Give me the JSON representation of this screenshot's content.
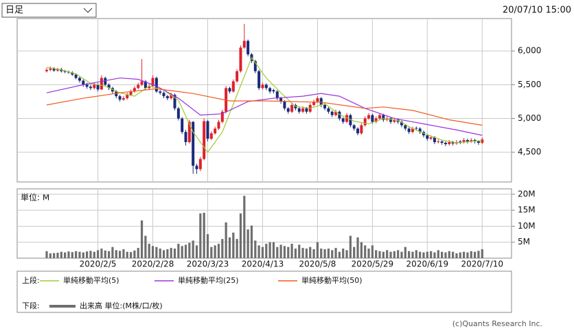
{
  "header": {
    "period": "日足",
    "timestamp": "20/07/10 15:00"
  },
  "chart_data": [
    {
      "type": "candlestick",
      "up_color": "#e0202a",
      "down_color": "#1a2a7a",
      "categories": [
        null,
        null,
        null,
        null,
        null,
        null,
        null,
        null,
        null,
        null,
        null,
        null,
        null,
        null,
        "2020/2/5",
        null,
        null,
        null,
        null,
        null,
        null,
        null,
        null,
        null,
        null,
        null,
        null,
        null,
        null,
        "2020/2/28",
        null,
        null,
        null,
        null,
        null,
        null,
        null,
        null,
        null,
        null,
        null,
        null,
        null,
        null,
        "2020/3/23",
        null,
        null,
        null,
        null,
        null,
        null,
        null,
        null,
        null,
        null,
        null,
        null,
        null,
        null,
        "2020/4/13",
        null,
        null,
        null,
        null,
        null,
        null,
        null,
        null,
        null,
        null,
        null,
        null,
        null,
        null,
        "2020/5/8",
        null,
        null,
        null,
        null,
        null,
        null,
        null,
        null,
        null,
        null,
        null,
        null,
        null,
        null,
        "2020/5/29",
        null,
        null,
        null,
        null,
        null,
        null,
        null,
        null,
        null,
        null,
        null,
        null,
        null,
        null,
        "2020/6/19",
        null,
        null,
        null,
        null,
        null,
        null,
        null,
        null,
        null,
        null,
        null,
        null,
        null,
        null,
        "2020/7/10"
      ],
      "candles": [
        [
          5700,
          5750,
          5680,
          5720
        ],
        [
          5720,
          5770,
          5700,
          5740
        ],
        [
          5740,
          5760,
          5690,
          5710
        ],
        [
          5710,
          5750,
          5690,
          5730
        ],
        [
          5730,
          5750,
          5680,
          5700
        ],
        [
          5700,
          5720,
          5670,
          5690
        ],
        [
          5690,
          5710,
          5660,
          5680
        ],
        [
          5680,
          5700,
          5630,
          5650
        ],
        [
          5650,
          5670,
          5580,
          5600
        ],
        [
          5600,
          5620,
          5530,
          5560
        ],
        [
          5560,
          5580,
          5470,
          5500
        ],
        [
          5500,
          5530,
          5440,
          5470
        ],
        [
          5470,
          5500,
          5420,
          5450
        ],
        [
          5450,
          5530,
          5430,
          5500
        ],
        [
          5500,
          5520,
          5400,
          5430
        ],
        [
          5430,
          5640,
          5420,
          5600
        ],
        [
          5600,
          5620,
          5480,
          5500
        ],
        [
          5500,
          5520,
          5420,
          5450
        ],
        [
          5450,
          5470,
          5370,
          5400
        ],
        [
          5400,
          5420,
          5300,
          5330
        ],
        [
          5330,
          5350,
          5250,
          5280
        ],
        [
          5280,
          5330,
          5260,
          5300
        ],
        [
          5300,
          5380,
          5280,
          5350
        ],
        [
          5350,
          5430,
          5330,
          5400
        ],
        [
          5400,
          5480,
          5380,
          5450
        ],
        [
          5450,
          5530,
          5430,
          5500
        ],
        [
          5500,
          5880,
          5480,
          5550
        ],
        [
          5550,
          5570,
          5420,
          5450
        ],
        [
          5450,
          5510,
          5430,
          5480
        ],
        [
          5480,
          5640,
          5460,
          5600
        ],
        [
          5600,
          5620,
          5380,
          5400
        ],
        [
          5400,
          5420,
          5350,
          5380
        ],
        [
          5380,
          5400,
          5300,
          5330
        ],
        [
          5330,
          5350,
          5270,
          5300
        ],
        [
          5300,
          5380,
          5280,
          5350
        ],
        [
          5350,
          5370,
          5120,
          5150
        ],
        [
          5150,
          5170,
          4970,
          5000
        ],
        [
          5000,
          5020,
          4770,
          4800
        ],
        [
          4800,
          4830,
          4600,
          4650
        ],
        [
          4650,
          4980,
          4630,
          4950
        ],
        [
          4950,
          4960,
          4180,
          4300
        ],
        [
          4300,
          4330,
          4180,
          4250
        ],
        [
          4250,
          4430,
          4220,
          4400
        ],
        [
          4400,
          5000,
          4380,
          4960
        ],
        [
          4960,
          4980,
          4660,
          4700
        ],
        [
          4700,
          4810,
          4680,
          4780
        ],
        [
          4780,
          4880,
          4760,
          4850
        ],
        [
          4850,
          4980,
          4830,
          4950
        ],
        [
          4950,
          5130,
          4930,
          5100
        ],
        [
          5100,
          5480,
          5080,
          5450
        ],
        [
          5450,
          5470,
          5370,
          5400
        ],
        [
          5400,
          5580,
          5380,
          5550
        ],
        [
          5550,
          5730,
          5530,
          5700
        ],
        [
          5700,
          6080,
          5680,
          6050
        ],
        [
          6050,
          6400,
          6030,
          6150
        ],
        [
          6150,
          6170,
          5920,
          5950
        ],
        [
          5950,
          5970,
          5820,
          5850
        ],
        [
          5850,
          5870,
          5670,
          5700
        ],
        [
          5700,
          5720,
          5420,
          5450
        ],
        [
          5450,
          5530,
          5430,
          5500
        ],
        [
          5500,
          5520,
          5420,
          5450
        ],
        [
          5450,
          5470,
          5370,
          5400
        ],
        [
          5420,
          5440,
          5370,
          5400
        ],
        [
          5400,
          5420,
          5270,
          5300
        ],
        [
          5300,
          5320,
          5220,
          5250
        ],
        [
          5250,
          5270,
          5120,
          5150
        ],
        [
          5150,
          5170,
          5070,
          5100
        ],
        [
          5100,
          5230,
          5080,
          5200
        ],
        [
          5200,
          5220,
          5120,
          5150
        ],
        [
          5150,
          5170,
          5070,
          5100
        ],
        [
          5100,
          5180,
          5080,
          5150
        ],
        [
          5150,
          5170,
          5070,
          5100
        ],
        [
          5100,
          5230,
          5080,
          5200
        ],
        [
          5200,
          5280,
          5180,
          5250
        ],
        [
          5250,
          5330,
          5230,
          5300
        ],
        [
          5300,
          5320,
          5170,
          5200
        ],
        [
          5200,
          5220,
          5120,
          5150
        ],
        [
          5150,
          5170,
          5070,
          5100
        ],
        [
          5100,
          5120,
          5020,
          5050
        ],
        [
          5050,
          5130,
          5030,
          5100
        ],
        [
          5100,
          5120,
          4970,
          5000
        ],
        [
          5000,
          5020,
          4920,
          4950
        ],
        [
          4950,
          5080,
          4930,
          5050
        ],
        [
          5050,
          5070,
          4870,
          4900
        ],
        [
          4900,
          4920,
          4820,
          4850
        ],
        [
          4850,
          4870,
          4750,
          4780
        ],
        [
          4780,
          4930,
          4760,
          4900
        ],
        [
          4900,
          5030,
          4880,
          5000
        ],
        [
          5000,
          5080,
          4980,
          5050
        ],
        [
          5050,
          5070,
          4920,
          4950
        ],
        [
          4950,
          5030,
          4930,
          5000
        ],
        [
          5000,
          5080,
          4980,
          5050
        ],
        [
          5050,
          5070,
          4950,
          4980
        ],
        [
          4980,
          5030,
          4960,
          5000
        ],
        [
          5000,
          5020,
          4920,
          4950
        ],
        [
          4950,
          5010,
          4930,
          4980
        ],
        [
          4980,
          5000,
          4920,
          4950
        ],
        [
          4950,
          4970,
          4870,
          4900
        ],
        [
          4900,
          4920,
          4820,
          4850
        ],
        [
          4850,
          4870,
          4770,
          4800
        ],
        [
          4800,
          4880,
          4780,
          4850
        ],
        [
          4860,
          4880,
          4820,
          4850
        ],
        [
          4850,
          4870,
          4770,
          4800
        ],
        [
          4800,
          4820,
          4720,
          4750
        ],
        [
          4750,
          4770,
          4670,
          4700
        ],
        [
          4700,
          4750,
          4680,
          4720
        ],
        [
          4720,
          4740,
          4620,
          4650
        ],
        [
          4650,
          4690,
          4630,
          4660
        ],
        [
          4660,
          4680,
          4610,
          4640
        ],
        [
          4640,
          4660,
          4590,
          4620
        ],
        [
          4620,
          4680,
          4600,
          4650
        ],
        [
          4650,
          4670,
          4600,
          4630
        ],
        [
          4630,
          4680,
          4610,
          4650
        ],
        [
          4660,
          4680,
          4620,
          4650
        ],
        [
          4650,
          4710,
          4630,
          4680
        ],
        [
          4680,
          4700,
          4630,
          4660
        ],
        [
          4660,
          4710,
          4640,
          4680
        ],
        [
          4680,
          4700,
          4630,
          4660
        ],
        [
          4660,
          4680,
          4610,
          4640
        ],
        [
          4640,
          4720,
          4620,
          4690
        ]
      ],
      "series": [
        {
          "name": "単純移動平均(5)",
          "color": "#9acd32",
          "x": [
            0,
            4,
            8,
            12,
            16,
            20,
            24,
            28,
            32,
            36,
            40,
            44,
            48,
            52,
            56,
            60,
            64,
            68,
            72,
            76,
            80,
            84,
            88,
            92,
            96,
            100,
            104,
            108,
            112,
            116,
            119
          ],
          "values": [
            5760,
            5720,
            5660,
            5520,
            5480,
            5380,
            5330,
            5480,
            5420,
            5270,
            4800,
            4500,
            4800,
            5350,
            5900,
            5600,
            5380,
            5180,
            5150,
            5220,
            5060,
            4960,
            4920,
            5000,
            4970,
            4850,
            4760,
            4680,
            4640,
            4660,
            4670
          ]
        },
        {
          "name": "単純移動平均(25)",
          "color": "#9b30e0",
          "x": [
            0,
            10,
            20,
            25,
            30,
            36,
            42,
            48,
            55,
            62,
            70,
            75,
            80,
            87,
            95,
            105,
            112,
            119
          ],
          "values": [
            5380,
            5500,
            5600,
            5580,
            5480,
            5300,
            5050,
            5070,
            5250,
            5300,
            5330,
            5370,
            5330,
            5150,
            5000,
            4900,
            4830,
            4750
          ]
        },
        {
          "name": "単純移動平均(50)",
          "color": "#f05a1e",
          "x": [
            0,
            10,
            20,
            30,
            40,
            50,
            60,
            75,
            87,
            92,
            100,
            110,
            119
          ],
          "values": [
            5200,
            5300,
            5380,
            5440,
            5370,
            5260,
            5260,
            5240,
            5150,
            5170,
            5120,
            4980,
            4900
          ]
        }
      ],
      "ylim": [
        4060,
        6480
      ],
      "yticks": [
        {
          "value": 4500,
          "label": "4,500"
        },
        {
          "value": 5000,
          "label": "5,000"
        },
        {
          "value": 5500,
          "label": "5,500"
        },
        {
          "value": 6000,
          "label": "6,000"
        }
      ],
      "grid": true
    },
    {
      "type": "bar",
      "unit_label": "単位: M",
      "name": "出来高 単位:(M株/口/枚)",
      "color": "#6e6e6e",
      "values": [
        2.2,
        1.5,
        1.6,
        1.7,
        2.0,
        1.8,
        2.1,
        1.9,
        2.2,
        2.0,
        1.8,
        2.1,
        2.3,
        2.0,
        2.5,
        3.0,
        2.4,
        2.2,
        3.5,
        2.5,
        2.3,
        2.8,
        2.0,
        1.9,
        2.4,
        3.2,
        11.8,
        7.0,
        4.5,
        3.8,
        3.5,
        3.0,
        2.5,
        2.8,
        3.2,
        3.0,
        4.5,
        3.8,
        4.2,
        4.8,
        5.5,
        4.0,
        14.0,
        14.2,
        7.5,
        3.5,
        4.0,
        4.5,
        6.0,
        11.2,
        6.5,
        8.0,
        6.0,
        14.0,
        19.5,
        9.0,
        10.2,
        5.5,
        4.0,
        3.5,
        4.5,
        5.0,
        5.0,
        3.5,
        4.2,
        3.8,
        3.5,
        4.5,
        3.0,
        4.2,
        3.2,
        3.0,
        3.5,
        2.8,
        5.0,
        3.0,
        2.8,
        3.0,
        2.5,
        3.2,
        2.0,
        3.0,
        2.5,
        7.0,
        3.5,
        6.5,
        5.0,
        4.0,
        3.0,
        4.0,
        2.5,
        2.2,
        2.0,
        2.5,
        2.0,
        2.2,
        2.5,
        2.0,
        3.5,
        2.2,
        2.0,
        2.5,
        2.0,
        1.8,
        2.0,
        2.2,
        1.8,
        2.5,
        2.0,
        1.8,
        2.2,
        2.0,
        1.5,
        1.8,
        2.0,
        1.8,
        2.2,
        2.0,
        2.3,
        2.8
      ],
      "ylim": [
        0,
        21.7
      ],
      "yticks": [
        {
          "value": 5,
          "label": "5M"
        },
        {
          "value": 10,
          "label": "10M"
        },
        {
          "value": 15,
          "label": "15M"
        },
        {
          "value": 20,
          "label": "20M"
        }
      ],
      "grid": true
    }
  ],
  "legend": {
    "upper_label": "上段:",
    "lower_label": "下段:"
  },
  "footer": "(c)Quants Research Inc."
}
